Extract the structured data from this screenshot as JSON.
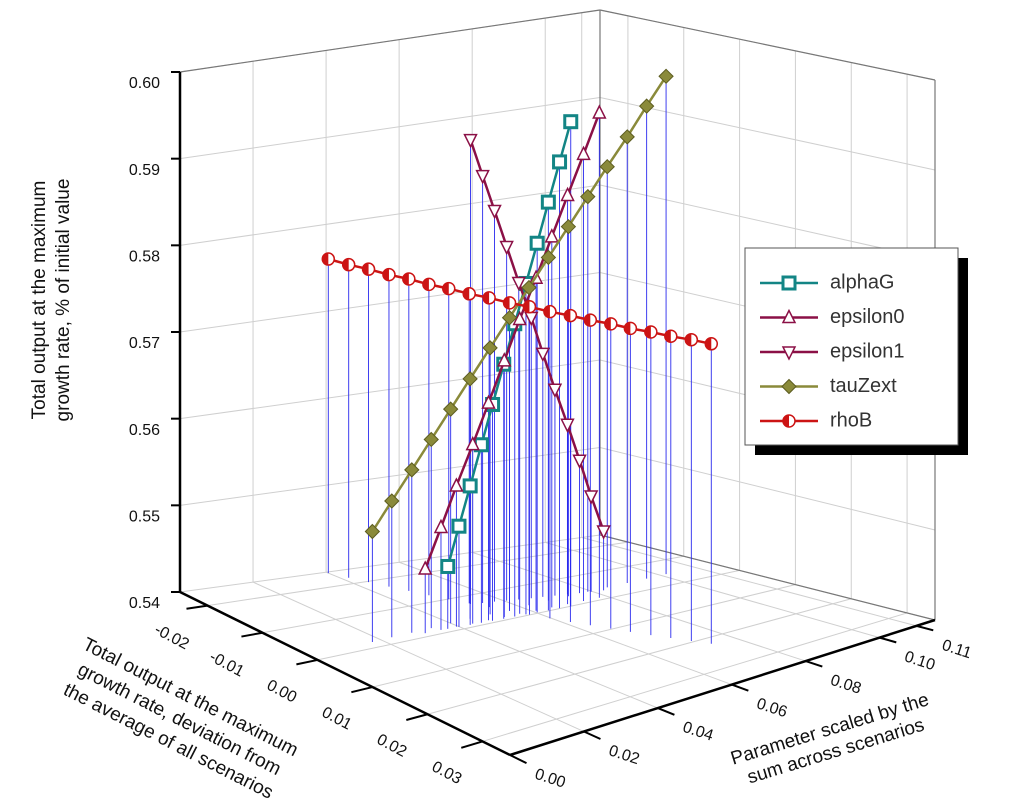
{
  "chart_data": {
    "type": "scatter3d",
    "x_label": [
      "Total output at the maximum",
      "growth rate, deviation from",
      "the average of all scenarios"
    ],
    "y_label": [
      "Parameter scaled by the",
      "sum across scenarios"
    ],
    "z_label": [
      "Total output at the maximum",
      "growth rate, % of initial value"
    ],
    "xlim": [
      -0.025,
      0.035
    ],
    "xticks": [
      -0.02,
      -0.01,
      {
        "value": 0,
        "label": "0.00"
      },
      0.01,
      0.02,
      0.03
    ],
    "ylim": [
      0,
      0.115
    ],
    "yticks": [
      {
        "value": 0,
        "label": "0.00"
      },
      0.02,
      0.04,
      0.06,
      0.08,
      {
        "value": 0.1,
        "label": "0.10"
      },
      0.11
    ],
    "zlim": [
      0.54,
      0.6
    ],
    "zticks": [
      0.54,
      0.55,
      0.56,
      0.57,
      0.58,
      0.59,
      {
        "value": 0.6,
        "label": "0.60"
      }
    ],
    "grid": true,
    "drop_line_color": "#2a2aee",
    "legend": "right",
    "series": [
      {
        "name": "alphaG",
        "color": "#138585",
        "marker": "square",
        "x": [
          -0.001,
          -0.0009,
          -0.0008,
          -0.0007,
          -0.0006,
          -0.0005,
          -0.0005,
          -0.0004,
          -0.0003,
          -0.0002,
          -0.0001,
          0
        ],
        "y": [
          0.037,
          0.0399,
          0.0428,
          0.0457,
          0.0486,
          0.0515,
          0.0545,
          0.0574,
          0.0603,
          0.0632,
          0.0661,
          0.069
        ],
        "values": [
          0.547,
          0.5513,
          0.5556,
          0.56,
          0.5643,
          0.5686,
          0.5729,
          0.5772,
          0.5815,
          0.5859,
          0.5902,
          0.5945
        ]
      },
      {
        "name": "epsilon0",
        "color": "#8b1046",
        "marker": "triangle-up",
        "x": [
          -0.0011,
          -0.0011,
          -0.0011,
          -0.001,
          -0.001,
          -0.001,
          -0.001,
          -0.0009,
          -0.0009,
          -0.0009,
          -0.0008,
          -0.0008
        ],
        "y": [
          0.031,
          0.0353,
          0.0395,
          0.0438,
          0.0481,
          0.0524,
          0.0566,
          0.0609,
          0.0652,
          0.0695,
          0.0737,
          0.078
        ],
        "values": [
          0.5472,
          0.5515,
          0.5558,
          0.5601,
          0.5644,
          0.5688,
          0.5731,
          0.5774,
          0.5817,
          0.586,
          0.5903,
          0.5946
        ]
      },
      {
        "name": "epsilon1",
        "color": "#8b1046",
        "marker": "triangle-down",
        "x": [
          -0.0071,
          -0.0067,
          -0.0064,
          -0.006,
          -0.0056,
          -0.0052,
          -0.0049,
          -0.0045,
          -0.0041,
          -0.0037,
          -0.0034,
          -0.003
        ],
        "y": [
          0.0524,
          0.0551,
          0.0579,
          0.0606,
          0.0633,
          0.0661,
          0.0688,
          0.0715,
          0.0743,
          0.077,
          0.0797,
          0.0825
        ],
        "values": [
          0.5925,
          0.5883,
          0.5842,
          0.58,
          0.5758,
          0.5717,
          0.5675,
          0.5633,
          0.5592,
          0.555,
          0.5508,
          0.5467
        ]
      },
      {
        "name": "tauZext",
        "color": "#8a8a3a",
        "marker": "diamond",
        "x": [
          -0.0017,
          -0.0019,
          -0.002,
          -0.0022,
          -0.0024,
          -0.0026,
          -0.0027,
          -0.0029,
          -0.0031,
          -0.0033,
          -0.0034,
          -0.0036,
          -0.0038,
          -0.0039,
          -0.0041,
          -0.0043
        ],
        "y": [
          0.0175,
          0.0231,
          0.0287,
          0.0343,
          0.0399,
          0.0455,
          0.0511,
          0.0567,
          0.0623,
          0.0679,
          0.0735,
          0.0791,
          0.0847,
          0.0903,
          0.0959,
          0.1015
        ],
        "values": [
          0.5524,
          0.5553,
          0.5583,
          0.5612,
          0.5641,
          0.567,
          0.57,
          0.5729,
          0.5758,
          0.5787,
          0.5817,
          0.5846,
          0.5875,
          0.5904,
          0.5934,
          0.5963
        ]
      },
      {
        "name": "rhoB",
        "color": "#cc1414",
        "marker": "half-circle",
        "x": [
          -0.0246,
          -0.0221,
          -0.0197,
          -0.0172,
          -0.0148,
          -0.0123,
          -0.0099,
          -0.0074,
          -0.005,
          -0.0025,
          -0.0001,
          0.0024,
          0.0049,
          0.0073,
          0.0098,
          0.0122,
          0.0147,
          0.0171,
          0.0196,
          0.022
        ],
        "y": [
          0.04,
          0.0418,
          0.0436,
          0.0454,
          0.0472,
          0.0489,
          0.0507,
          0.0525,
          0.0543,
          0.0561,
          0.0579,
          0.0597,
          0.0615,
          0.0633,
          0.0651,
          0.0668,
          0.0686,
          0.0704,
          0.0722,
          0.074
        ],
        "values": [
          0.5761,
          0.5759,
          0.5758,
          0.5756,
          0.5755,
          0.5753,
          0.5752,
          0.575,
          0.5749,
          0.5747,
          0.5746,
          0.5744,
          0.5743,
          0.5741,
          0.574,
          0.5738,
          0.5737,
          0.5735,
          0.5734,
          0.5732
        ]
      }
    ]
  }
}
